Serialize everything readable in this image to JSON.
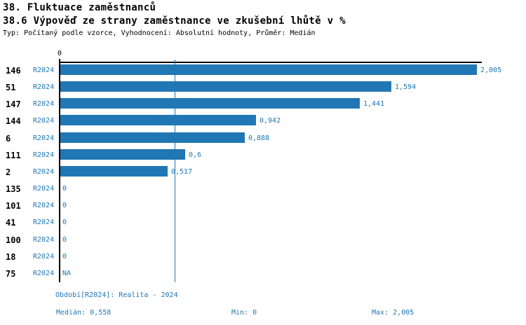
{
  "header": {
    "title1": "38. Fluktuace zaměstnanců",
    "title2": "38.6 Výpověď ze strany zaměstnance ve zkušební lhůtě v %",
    "subtitle": "Typ: Počítaný podle vzorce, Vyhodnocení: Absolutní hodnoty, Průměr: Medián"
  },
  "chart_data": {
    "type": "bar",
    "orientation": "horizontal",
    "title": "38.6 Výpověď ze strany zaměstnance ve zkušební lhůtě v %",
    "period": "R2024",
    "categories": [
      "146",
      "51",
      "147",
      "144",
      "6",
      "111",
      "2",
      "135",
      "101",
      "41",
      "100",
      "18",
      "75"
    ],
    "values": [
      2.005,
      1.594,
      1.441,
      0.942,
      0.888,
      0.6,
      0.517,
      0,
      0,
      0,
      0,
      0,
      null
    ],
    "value_labels": [
      "2,005",
      "1,594",
      "1,441",
      "0,942",
      "0,888",
      "0,6",
      "0,517",
      "0",
      "0",
      "0",
      "0",
      "0",
      "NA"
    ],
    "axis": {
      "min": 0,
      "max": 2.005,
      "tick_labels": [
        "0"
      ],
      "median": 0.558
    },
    "legend_position": "none",
    "grid": "median-line-only",
    "colors": {
      "bar": "#2077B4",
      "blue_text": "#2077B4",
      "axis": "#000000"
    }
  },
  "footer": {
    "period_line": "Období[R2024]: Realita - 2024",
    "median": "Medián: 0,558",
    "min": "Min: 0",
    "max": "Max: 2,005"
  }
}
